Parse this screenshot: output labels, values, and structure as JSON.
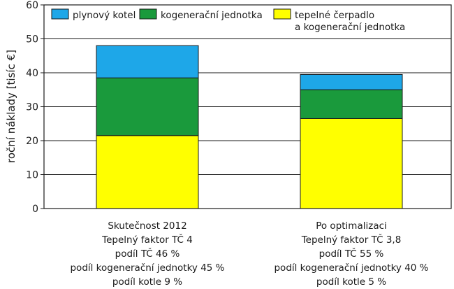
{
  "chart_data": {
    "type": "bar",
    "stacked": true,
    "ylabel": "roční náklady [tisíc €]",
    "ylim": [
      0,
      60
    ],
    "yticks": [
      0,
      10,
      20,
      30,
      40,
      50,
      60
    ],
    "grid": true,
    "legend_position": "top",
    "categories": [
      {
        "lines": [
          "Skutečnost 2012",
          "Tepelný faktor TČ 4",
          "podíl TČ 46 %",
          "podíl kogenerační jednotky 45 %",
          "podíl kotle 9 %"
        ]
      },
      {
        "lines": [
          "Po optimalizaci",
          "Tepelný faktor TČ 3,8",
          "podíl TČ 55 %",
          "podíl kogenerační jednotky 40 %",
          "podíl kotle 5 %"
        ]
      }
    ],
    "series": [
      {
        "name": "tepelné čerpadlo\na kogenerační jednotka",
        "color": "#ffff00",
        "values": [
          21.5,
          26.5
        ]
      },
      {
        "name": "kogenerační jednotka",
        "color": "#1a9a3c",
        "values": [
          17.0,
          8.5
        ]
      },
      {
        "name": "plynový kotel",
        "color": "#1ea7e8",
        "values": [
          9.5,
          4.5
        ]
      }
    ],
    "legend_order": [
      2,
      1,
      0
    ]
  }
}
